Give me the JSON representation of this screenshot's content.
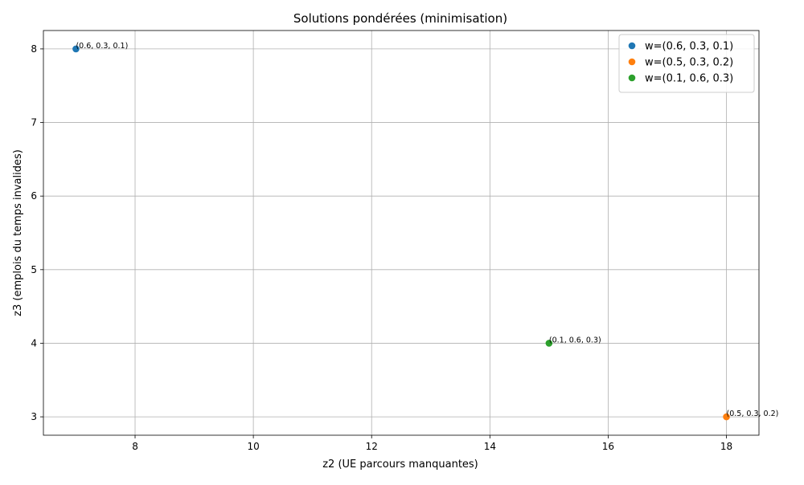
{
  "chart_data": {
    "type": "scatter",
    "title": "Solutions pondérées (minimisation)",
    "xlabel": "z2 (UE parcours manquantes)",
    "ylabel": "z3 (emplois du temps invalides)",
    "xlim": [
      6.45,
      18.55
    ],
    "ylim": [
      2.75,
      8.25
    ],
    "xticks": [
      8,
      10,
      12,
      14,
      16,
      18
    ],
    "yticks": [
      3,
      4,
      5,
      6,
      7,
      8
    ],
    "grid": true,
    "legend_position": "top-right",
    "series": [
      {
        "name": "w=(0.6, 0.3, 0.1)",
        "color": "#1f77b4",
        "points": [
          {
            "x": 7,
            "y": 8,
            "label": "(0.6, 0.3, 0.1)"
          }
        ]
      },
      {
        "name": "w=(0.5, 0.3, 0.2)",
        "color": "#ff7f0e",
        "points": [
          {
            "x": 18,
            "y": 3,
            "label": "(0.5, 0.3, 0.2)"
          }
        ]
      },
      {
        "name": "w=(0.1, 0.6, 0.3)",
        "color": "#2ca02c",
        "points": [
          {
            "x": 15,
            "y": 4,
            "label": "(0.1, 0.6, 0.3)"
          }
        ]
      }
    ]
  }
}
